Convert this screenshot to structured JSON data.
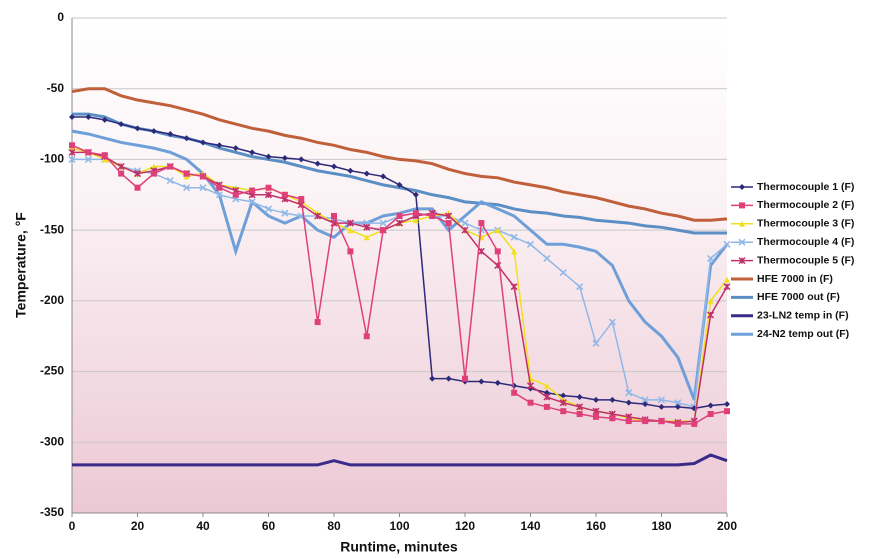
{
  "chart_data": {
    "type": "line",
    "x_label": "Runtime, minutes",
    "y_label": "Temperature, °F",
    "x": [
      0,
      5,
      10,
      15,
      20,
      25,
      30,
      35,
      40,
      45,
      50,
      55,
      60,
      65,
      70,
      75,
      80,
      85,
      90,
      95,
      100,
      105,
      110,
      115,
      120,
      125,
      130,
      135,
      140,
      145,
      150,
      155,
      160,
      165,
      170,
      175,
      180,
      185,
      190,
      195,
      200
    ],
    "xlim": [
      0,
      200
    ],
    "xticks": [
      0,
      20,
      40,
      60,
      80,
      100,
      120,
      140,
      160,
      180,
      200
    ],
    "ylim": [
      -350,
      0
    ],
    "yticks": [
      0,
      -50,
      -100,
      -150,
      -200,
      -250,
      -300,
      -350
    ],
    "grid": true,
    "legend": "right",
    "series": [
      {
        "name": "Thermocouple 1 (F)",
        "color": "#2d2a7a",
        "marker": "diamond",
        "values": [
          -70,
          -70,
          -72,
          -75,
          -78,
          -80,
          -82,
          -85,
          -88,
          -90,
          -92,
          -95,
          -98,
          -99,
          -100,
          -103,
          -105,
          -108,
          -110,
          -112,
          -118,
          -125,
          -255,
          -255,
          -257,
          -257,
          -258,
          -260,
          -262,
          -265,
          -267,
          -268,
          -270,
          -270,
          -272,
          -273,
          -275,
          -275,
          -276,
          -274,
          -273
        ]
      },
      {
        "name": "Thermocouple 2 (F)",
        "color": "#e0407a",
        "marker": "square",
        "values": [
          -90,
          -95,
          -97,
          -110,
          -120,
          -110,
          -105,
          -110,
          -112,
          -120,
          -125,
          -122,
          -120,
          -125,
          -128,
          -215,
          -140,
          -165,
          -225,
          -150,
          -140,
          -138,
          -140,
          -145,
          -255,
          -145,
          -165,
          -265,
          -272,
          -275,
          -278,
          -280,
          -282,
          -283,
          -285,
          -285,
          -285,
          -287,
          -287,
          -280,
          -278
        ]
      },
      {
        "name": "Thermocouple 3 (F)",
        "color": "#f0e020",
        "marker": "triangle",
        "values": [
          -92,
          -95,
          -100,
          -105,
          -110,
          -105,
          -105,
          -112,
          -110,
          -118,
          -120,
          -122,
          -120,
          -125,
          -130,
          -138,
          -145,
          -150,
          -155,
          -150,
          -145,
          -143,
          -140,
          -138,
          -150,
          -155,
          -150,
          -165,
          -255,
          -260,
          -270,
          -275,
          -278,
          -280,
          -283,
          -285,
          -285,
          -285,
          -285,
          -200,
          -185
        ]
      },
      {
        "name": "Thermocouple 4 (F)",
        "color": "#8fb8e8",
        "marker": "x",
        "values": [
          -100,
          -100,
          -100,
          -105,
          -108,
          -110,
          -115,
          -120,
          -120,
          -125,
          -128,
          -130,
          -135,
          -138,
          -140,
          -140,
          -142,
          -145,
          -145,
          -145,
          -140,
          -138,
          -140,
          -140,
          -145,
          -150,
          -150,
          -155,
          -160,
          -170,
          -180,
          -190,
          -230,
          -215,
          -265,
          -270,
          -270,
          -272,
          -275,
          -170,
          -160
        ]
      },
      {
        "name": "Thermocouple 5 (F)",
        "color": "#c0306a",
        "marker": "star",
        "values": [
          -95,
          -95,
          -98,
          -105,
          -110,
          -108,
          -105,
          -110,
          -112,
          -118,
          -122,
          -125,
          -125,
          -128,
          -132,
          -140,
          -145,
          -145,
          -148,
          -150,
          -145,
          -140,
          -138,
          -140,
          -150,
          -165,
          -175,
          -190,
          -260,
          -268,
          -272,
          -275,
          -278,
          -280,
          -282,
          -284,
          -285,
          -286,
          -285,
          -210,
          -190
        ]
      },
      {
        "name": "HFE 7000 in (F)",
        "color": "#c0603a",
        "values": [
          -52,
          -50,
          -50,
          -55,
          -58,
          -60,
          -62,
          -65,
          -68,
          -72,
          -75,
          -78,
          -80,
          -83,
          -85,
          -88,
          -90,
          -93,
          -95,
          -98,
          -100,
          -101,
          -103,
          -107,
          -110,
          -112,
          -113,
          -116,
          -118,
          -120,
          -123,
          -125,
          -127,
          -130,
          -133,
          -135,
          -138,
          -140,
          -143,
          -143,
          -142
        ]
      },
      {
        "name": "HFE 7000 out (F)",
        "color": "#5b8ec4",
        "values": [
          -68,
          -68,
          -70,
          -75,
          -78,
          -80,
          -83,
          -85,
          -88,
          -92,
          -95,
          -98,
          -100,
          -102,
          -105,
          -108,
          -110,
          -112,
          -115,
          -118,
          -120,
          -122,
          -125,
          -127,
          -130,
          -131,
          -132,
          -135,
          -137,
          -138,
          -140,
          -141,
          -143,
          -144,
          -145,
          -147,
          -148,
          -150,
          -152,
          -152,
          -152
        ]
      },
      {
        "name": "23-LN2 temp in (F)",
        "color": "#3a2a8a",
        "values": [
          -316,
          -316,
          -316,
          -316,
          -316,
          -316,
          -316,
          -316,
          -316,
          -316,
          -316,
          -316,
          -316,
          -316,
          -316,
          -316,
          -313,
          -316,
          -316,
          -316,
          -316,
          -316,
          -316,
          -316,
          -316,
          -316,
          -316,
          -316,
          -316,
          -316,
          -316,
          -316,
          -316,
          -316,
          -316,
          -316,
          -316,
          -316,
          -315,
          -309,
          -313
        ]
      },
      {
        "name": "24-N2 temp out (F)",
        "color": "#6f9fd8",
        "values": [
          -80,
          -82,
          -85,
          -88,
          -90,
          -92,
          -95,
          -100,
          -110,
          -125,
          -165,
          -130,
          -140,
          -145,
          -140,
          -150,
          -155,
          -145,
          -145,
          -140,
          -138,
          -135,
          -135,
          -150,
          -140,
          -130,
          -135,
          -140,
          -150,
          -160,
          -160,
          -162,
          -165,
          -175,
          -200,
          -215,
          -225,
          -240,
          -270,
          -175,
          -160
        ]
      }
    ]
  }
}
